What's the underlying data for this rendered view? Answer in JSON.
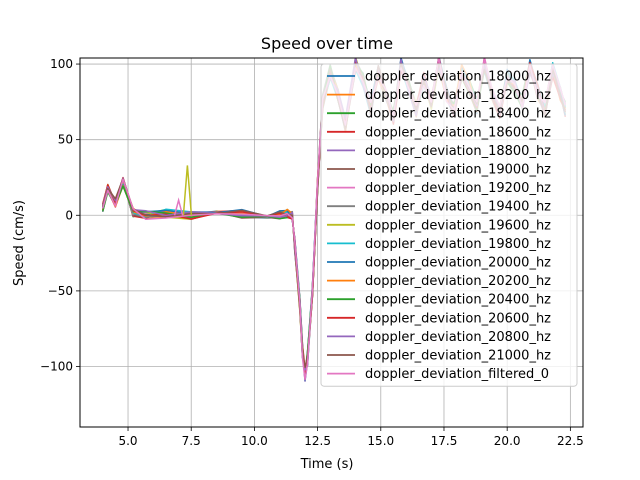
{
  "chart_data": {
    "type": "line",
    "title": "Speed over time",
    "xlabel": "Time (s)",
    "ylabel": "Speed (cm/s)",
    "xlim": [
      3.1,
      23.0
    ],
    "ylim": [
      -140,
      104
    ],
    "xticks": [
      5.0,
      7.5,
      10.0,
      12.5,
      15.0,
      17.5,
      20.0,
      22.5
    ],
    "xtick_labels": [
      "5.0",
      "7.5",
      "10.0",
      "12.5",
      "15.0",
      "17.5",
      "20.0",
      "22.5"
    ],
    "yticks": [
      -100,
      -50,
      0,
      50,
      100
    ],
    "ytick_labels": [
      "−100",
      "−50",
      "0",
      "50",
      "100"
    ],
    "grid": true,
    "legend_position": "top-right",
    "series": [
      {
        "name": "doppler_deviation_18000_hz",
        "color": "#1f77b4"
      },
      {
        "name": "doppler_deviation_18200_hz",
        "color": "#ff7f0e"
      },
      {
        "name": "doppler_deviation_18400_hz",
        "color": "#2ca02c"
      },
      {
        "name": "doppler_deviation_18600_hz",
        "color": "#d62728"
      },
      {
        "name": "doppler_deviation_18800_hz",
        "color": "#9467bd"
      },
      {
        "name": "doppler_deviation_19000_hz",
        "color": "#8c564b"
      },
      {
        "name": "doppler_deviation_19200_hz",
        "color": "#e377c2"
      },
      {
        "name": "doppler_deviation_19400_hz",
        "color": "#7f7f7f"
      },
      {
        "name": "doppler_deviation_19600_hz",
        "color": "#bcbd22"
      },
      {
        "name": "doppler_deviation_19800_hz",
        "color": "#17becf"
      },
      {
        "name": "doppler_deviation_20000_hz",
        "color": "#1f77b4"
      },
      {
        "name": "doppler_deviation_20200_hz",
        "color": "#ff7f0e"
      },
      {
        "name": "doppler_deviation_20400_hz",
        "color": "#2ca02c"
      },
      {
        "name": "doppler_deviation_20600_hz",
        "color": "#d62728"
      },
      {
        "name": "doppler_deviation_20800_hz",
        "color": "#9467bd"
      },
      {
        "name": "doppler_deviation_21000_hz",
        "color": "#8c564b"
      },
      {
        "name": "doppler_deviation_filtered_0",
        "color": "#e377c2"
      }
    ],
    "shared_trace": {
      "x": [
        4.0,
        4.2,
        4.5,
        4.8,
        5.2,
        5.7,
        6.5,
        7.5,
        8.5,
        9.5,
        10.5,
        11.0,
        11.3,
        11.5,
        11.6,
        11.8,
        11.9,
        12.0,
        12.1,
        12.3,
        12.5,
        12.7,
        13.0,
        13.3,
        13.6,
        14.0,
        14.3,
        14.6,
        14.9,
        15.2,
        15.5,
        15.8,
        16.1,
        16.4,
        16.7,
        17.0,
        17.3,
        17.6,
        17.9,
        18.2,
        18.5,
        18.8,
        19.1,
        19.4,
        19.7,
        20.0,
        20.3,
        20.6,
        20.9,
        21.2,
        21.5,
        21.8,
        22.1,
        22.3
      ],
      "y": [
        5,
        18,
        8,
        22,
        2,
        0,
        1,
        0,
        0,
        1,
        0,
        0,
        1,
        0,
        -20,
        -60,
        -90,
        -105,
        -95,
        -50,
        20,
        75,
        95,
        80,
        60,
        100,
        90,
        70,
        95,
        80,
        65,
        100,
        85,
        70,
        90,
        75,
        100,
        80,
        70,
        95,
        85,
        72,
        100,
        80,
        68,
        92,
        85,
        75,
        98,
        82,
        70,
        96,
        80,
        70
      ]
    },
    "spikes": [
      {
        "x": 7.35,
        "y": 33,
        "series": "doppler_deviation_19600_hz"
      },
      {
        "x": 7.0,
        "y": 10,
        "series": "doppler_deviation_19200_hz"
      }
    ]
  }
}
